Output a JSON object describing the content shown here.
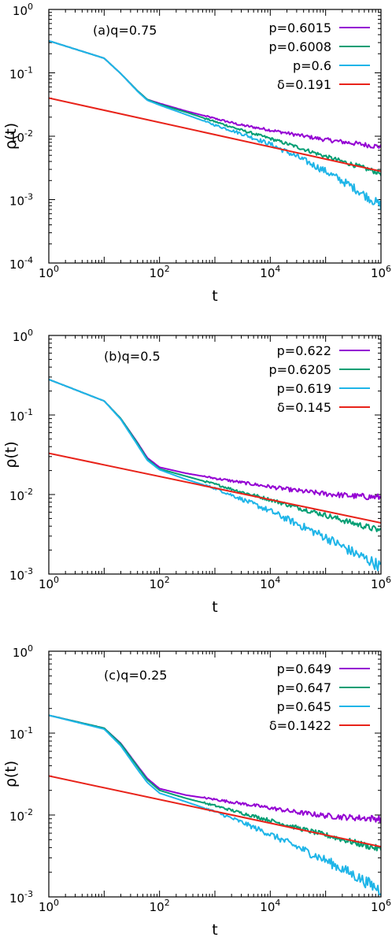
{
  "chart_data": [
    {
      "type": "line",
      "panel": "a",
      "annotation": "(a)q=0.75",
      "xlabel": "t",
      "ylabel": "ρ(t)",
      "xscale": "log",
      "yscale": "log",
      "xlim": [
        1,
        1000000
      ],
      "ylim": [
        0.0001,
        1
      ],
      "x_ticks": [
        {
          "base": "10",
          "exp": "0"
        },
        {
          "base": "10",
          "exp": "2"
        },
        {
          "base": "10",
          "exp": "4"
        },
        {
          "base": "10",
          "exp": "6"
        }
      ],
      "y_ticks": [
        {
          "base": "10",
          "exp": "0"
        },
        {
          "base": "10",
          "exp": "-1"
        },
        {
          "base": "10",
          "exp": "-2"
        },
        {
          "base": "10",
          "exp": "-3"
        },
        {
          "base": "10",
          "exp": "-4"
        }
      ],
      "legend_position": "top-right",
      "series": [
        {
          "name": "p=0.6015",
          "color": "#9400d3",
          "noisy": true,
          "x": [
            1,
            10,
            20,
            40,
            60,
            100,
            300,
            1000,
            3000,
            10000,
            30000,
            100000,
            300000,
            1000000
          ],
          "y": [
            0.32,
            0.17,
            0.097,
            0.052,
            0.038,
            0.033,
            0.025,
            0.019,
            0.015,
            0.0125,
            0.0105,
            0.0088,
            0.0078,
            0.0068
          ]
        },
        {
          "name": "p=0.6008",
          "color": "#009e73",
          "noisy": true,
          "x": [
            1,
            10,
            20,
            40,
            60,
            100,
            300,
            1000,
            3000,
            10000,
            30000,
            100000,
            300000,
            1000000
          ],
          "y": [
            0.32,
            0.17,
            0.097,
            0.052,
            0.038,
            0.032,
            0.024,
            0.017,
            0.0125,
            0.0092,
            0.0068,
            0.0048,
            0.0036,
            0.0026
          ]
        },
        {
          "name": "p=0.6",
          "color": "#1fb5e8",
          "noisy": true,
          "x": [
            1,
            10,
            20,
            40,
            60,
            100,
            300,
            1000,
            3000,
            10000,
            30000,
            100000,
            300000,
            1000000
          ],
          "y": [
            0.32,
            0.17,
            0.097,
            0.051,
            0.037,
            0.031,
            0.022,
            0.015,
            0.011,
            0.0075,
            0.0048,
            0.0028,
            0.0016,
            0.0008
          ]
        },
        {
          "name": "δ=0.191",
          "color": "#e8231a",
          "noisy": false,
          "x": [
            1,
            1000000
          ],
          "y": [
            0.04,
            0.0028
          ]
        }
      ]
    },
    {
      "type": "line",
      "panel": "b",
      "annotation": "(b)q=0.5",
      "xlabel": "t",
      "ylabel": "ρ(t)",
      "xscale": "log",
      "yscale": "log",
      "xlim": [
        1,
        1000000
      ],
      "ylim": [
        0.001,
        1
      ],
      "x_ticks": [
        {
          "base": "10",
          "exp": "0"
        },
        {
          "base": "10",
          "exp": "2"
        },
        {
          "base": "10",
          "exp": "4"
        },
        {
          "base": "10",
          "exp": "6"
        }
      ],
      "y_ticks": [
        {
          "base": "10",
          "exp": "0"
        },
        {
          "base": "10",
          "exp": "-1"
        },
        {
          "base": "10",
          "exp": "-2"
        },
        {
          "base": "10",
          "exp": "-3"
        }
      ],
      "legend_position": "top-right",
      "series": [
        {
          "name": "p=0.622",
          "color": "#9400d3",
          "noisy": true,
          "x": [
            1,
            10,
            20,
            40,
            60,
            100,
            300,
            1000,
            3000,
            10000,
            30000,
            100000,
            300000,
            1000000
          ],
          "y": [
            0.28,
            0.15,
            0.09,
            0.045,
            0.029,
            0.022,
            0.0185,
            0.016,
            0.0142,
            0.0125,
            0.0112,
            0.0102,
            0.0096,
            0.0092
          ]
        },
        {
          "name": "p=0.6205",
          "color": "#009e73",
          "noisy": true,
          "x": [
            1,
            10,
            20,
            40,
            60,
            100,
            300,
            1000,
            3000,
            10000,
            30000,
            100000,
            300000,
            1000000
          ],
          "y": [
            0.28,
            0.15,
            0.09,
            0.044,
            0.028,
            0.021,
            0.017,
            0.0135,
            0.0108,
            0.0086,
            0.0069,
            0.0055,
            0.0044,
            0.0035
          ]
        },
        {
          "name": "p=0.619",
          "color": "#1fb5e8",
          "noisy": true,
          "x": [
            1,
            10,
            20,
            40,
            60,
            100,
            300,
            1000,
            3000,
            10000,
            30000,
            100000,
            300000,
            1000000
          ],
          "y": [
            0.28,
            0.15,
            0.088,
            0.042,
            0.027,
            0.0205,
            0.0155,
            0.012,
            0.0088,
            0.0062,
            0.0043,
            0.0029,
            0.0019,
            0.00125
          ]
        },
        {
          "name": "δ=0.145",
          "color": "#e8231a",
          "noisy": false,
          "x": [
            1,
            1000000
          ],
          "y": [
            0.033,
            0.0044
          ]
        }
      ]
    },
    {
      "type": "line",
      "panel": "c",
      "annotation": "(c)q=0.25",
      "xlabel": "t",
      "ylabel": "ρ(t)",
      "xscale": "log",
      "yscale": "log",
      "xlim": [
        1,
        1000000
      ],
      "ylim": [
        0.001,
        1
      ],
      "x_ticks": [
        {
          "base": "10",
          "exp": "0"
        },
        {
          "base": "10",
          "exp": "2"
        },
        {
          "base": "10",
          "exp": "4"
        },
        {
          "base": "10",
          "exp": "6"
        }
      ],
      "y_ticks": [
        {
          "base": "10",
          "exp": "0"
        },
        {
          "base": "10",
          "exp": "-1"
        },
        {
          "base": "10",
          "exp": "-2"
        },
        {
          "base": "10",
          "exp": "-3"
        }
      ],
      "legend_position": "top-right",
      "series": [
        {
          "name": "p=0.649",
          "color": "#9400d3",
          "noisy": true,
          "x": [
            1,
            10,
            20,
            40,
            60,
            100,
            300,
            1000,
            3000,
            10000,
            30000,
            100000,
            300000,
            1000000
          ],
          "y": [
            0.165,
            0.115,
            0.075,
            0.04,
            0.028,
            0.021,
            0.0175,
            0.0155,
            0.0138,
            0.0122,
            0.0108,
            0.0098,
            0.0093,
            0.009
          ]
        },
        {
          "name": "p=0.647",
          "color": "#009e73",
          "noisy": true,
          "x": [
            1,
            10,
            20,
            40,
            60,
            100,
            300,
            1000,
            3000,
            10000,
            30000,
            100000,
            300000,
            1000000
          ],
          "y": [
            0.165,
            0.115,
            0.074,
            0.039,
            0.027,
            0.02,
            0.016,
            0.013,
            0.0106,
            0.0086,
            0.007,
            0.0057,
            0.0047,
            0.0038
          ]
        },
        {
          "name": "p=0.645",
          "color": "#1fb5e8",
          "noisy": true,
          "x": [
            1,
            10,
            20,
            40,
            60,
            100,
            300,
            1000,
            3000,
            10000,
            30000,
            100000,
            300000,
            1000000
          ],
          "y": [
            0.165,
            0.112,
            0.07,
            0.036,
            0.025,
            0.0185,
            0.0145,
            0.011,
            0.0082,
            0.0058,
            0.0041,
            0.0028,
            0.0019,
            0.0012
          ]
        },
        {
          "name": "δ=0.1422",
          "color": "#e8231a",
          "noisy": false,
          "x": [
            1,
            1000000
          ],
          "y": [
            0.03,
            0.0041
          ]
        }
      ]
    }
  ]
}
